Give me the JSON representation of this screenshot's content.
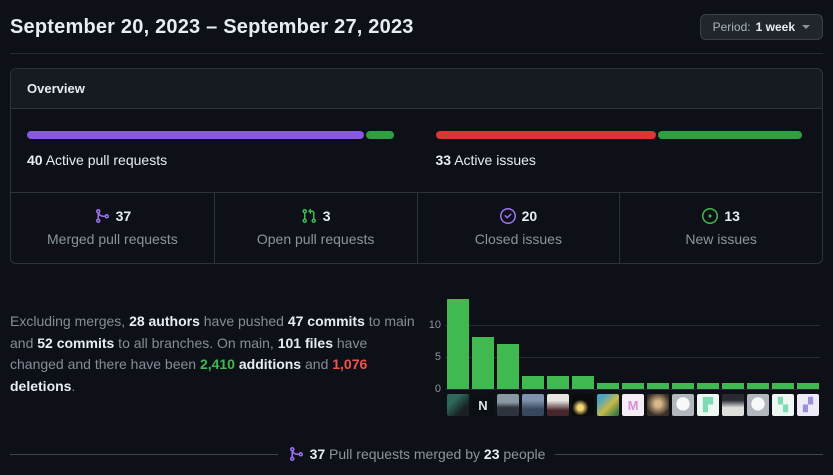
{
  "header": {
    "title": "September 20, 2023 – September 27, 2023",
    "period_prefix": "Period:",
    "period_value": "1 week"
  },
  "overview": {
    "title": "Overview",
    "pull_requests": {
      "count": "40",
      "label": "Active pull requests",
      "segments": [
        {
          "name": "merged",
          "color": "#8957e5",
          "pct": 92.5
        },
        {
          "name": "open",
          "color": "#2ea043",
          "pct": 7.5
        }
      ]
    },
    "issues": {
      "count": "33",
      "label": "Active issues",
      "segments": [
        {
          "name": "closed",
          "color": "#da3633",
          "pct": 60.6
        },
        {
          "name": "new",
          "color": "#2ea043",
          "pct": 39.4
        }
      ]
    },
    "stats": [
      {
        "icon": "git-merge-icon",
        "color": "#a371f7",
        "value": "37",
        "label": "Merged pull requests"
      },
      {
        "icon": "git-pull-request-icon",
        "color": "#3fb950",
        "value": "3",
        "label": "Open pull requests"
      },
      {
        "icon": "issue-closed-icon",
        "color": "#a371f7",
        "value": "20",
        "label": "Closed issues"
      },
      {
        "icon": "issue-opened-icon",
        "color": "#3fb950",
        "value": "13",
        "label": "New issues"
      }
    ]
  },
  "summary_segments": [
    {
      "text": "Excluding merges, "
    },
    {
      "text": "28 authors",
      "bold": true
    },
    {
      "text": " have pushed "
    },
    {
      "text": "47 commits",
      "bold": true
    },
    {
      "text": " to main and "
    },
    {
      "text": "52 commits",
      "bold": true
    },
    {
      "text": " to all branches. On main, "
    },
    {
      "text": "101 files",
      "bold": true
    },
    {
      "text": " have changed and there have been "
    },
    {
      "text": "2,410",
      "bold": true,
      "color": "#3fb950"
    },
    {
      "text": " "
    },
    {
      "text": "additions",
      "bold": true
    },
    {
      "text": " and "
    },
    {
      "text": "1,076",
      "bold": true,
      "color": "#f85149"
    },
    {
      "text": " "
    },
    {
      "text": "deletions",
      "bold": true
    },
    {
      "text": "."
    }
  ],
  "chart_data": {
    "type": "bar",
    "values": [
      14,
      8,
      7,
      2,
      2,
      2,
      1,
      1,
      1,
      1,
      1,
      1,
      1,
      1,
      1
    ],
    "yticks": [
      0,
      5,
      10
    ],
    "ylim": [
      0,
      15.2
    ],
    "bar_color": "#3fb950",
    "grid": "on",
    "xlabel": "",
    "ylabel": ""
  },
  "avatars": [
    {
      "bg": "linear-gradient(135deg,#2d6a5a 30%,#1a2024 72%)",
      "glyph": ""
    },
    {
      "bg": "#0b0e13",
      "glyph": "N",
      "glyph_color": "#dfe6ec"
    },
    {
      "bg": "linear-gradient(180deg,#8a97a5 38%,#2e343b 62%)",
      "glyph": ""
    },
    {
      "bg": "linear-gradient(180deg,#7e93ad 28%,#37475c 70%)",
      "glyph": ""
    },
    {
      "bg": "linear-gradient(180deg,#e8e4de 30%,#46262c 75%)",
      "glyph": ""
    },
    {
      "bg": "radial-gradient(circle at 38% 62%, #f5d76e 14%, #0a0b0d 42%)",
      "glyph": ""
    },
    {
      "bg": "linear-gradient(135deg,#4aa3c0 20%,#c8b84a 55%,#3a7d44 90%)",
      "glyph": ""
    },
    {
      "bg": "#f4eef4",
      "glyph": "M",
      "glyph_color": "#d78fd7"
    },
    {
      "bg": "radial-gradient(circle at 50% 45%, #d9b98a 18%, #392f27 72%)",
      "glyph": ""
    },
    {
      "bg": "radial-gradient(circle at 50% 45%, #f6f8fa 40%, #b1b7bd 42%)",
      "glyph": ""
    },
    {
      "bg": "#eef7f1",
      "glyph": "▛",
      "glyph_color": "#7edbb4"
    },
    {
      "bg": "linear-gradient(180deg,#272b31 28%,#dfe0dc 62%)",
      "glyph": ""
    },
    {
      "bg": "radial-gradient(circle at 50% 45%, #f6f8fa 40%, #b1b7bd 42%)",
      "glyph": ""
    },
    {
      "bg": "#eef7f1",
      "glyph": "▚",
      "glyph_color": "#7edbb4"
    },
    {
      "bg": "#efeaf8",
      "glyph": "▞",
      "glyph_color": "#9b8fdf"
    }
  ],
  "footer": {
    "icon": "git-merge-icon",
    "segments": [
      {
        "text": "37",
        "bold": true
      },
      {
        "text": " Pull requests merged by "
      },
      {
        "text": "23",
        "bold": true
      },
      {
        "text": " people"
      }
    ]
  }
}
